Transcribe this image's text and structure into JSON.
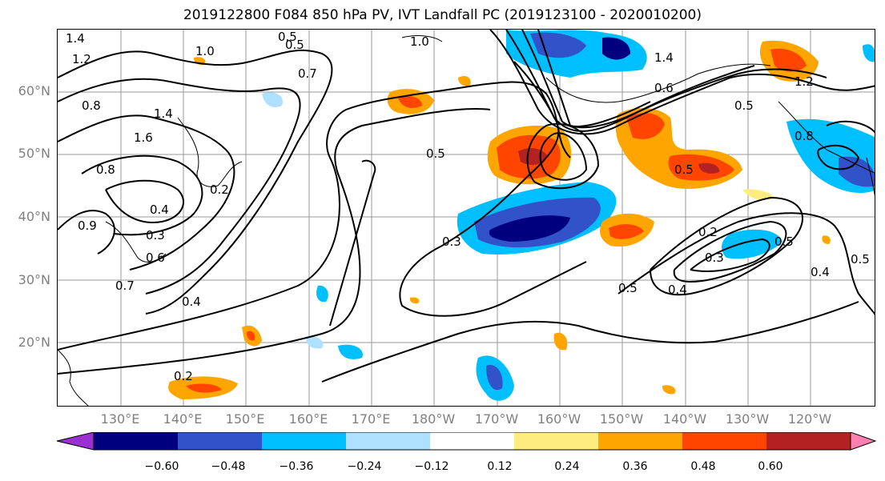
{
  "title": "2019122800 F084 850 hPa PV, IVT Landfall PC (2019123100 - 2020010200)",
  "lat_labels": [
    "60°N",
    "50°N",
    "40°N",
    "30°N",
    "20°N"
  ],
  "lon_labels": [
    "130°E",
    "140°E",
    "150°E",
    "160°E",
    "170°E",
    "180°W",
    "170°W",
    "160°W",
    "150°W",
    "140°W",
    "130°W",
    "120°W"
  ],
  "contour_labels": [
    "1.4",
    "1.2",
    "0.8",
    "1.0",
    "0.5",
    "0.7",
    "0.5",
    "1.0",
    "1.4",
    "1.2",
    "0.6",
    "0.5",
    "1.6",
    "0.8",
    "1.4",
    "0.4",
    "0.2",
    "0.9",
    "0.3",
    "0.6",
    "0.7",
    "0.4",
    "0.2",
    "0.3",
    "0.5",
    "0.3",
    "0.2",
    "0.5",
    "0.4",
    "0.4",
    "0.5",
    "0.8",
    "0.5",
    "0.5"
  ],
  "colorbar": {
    "ticks": [
      "−0.60",
      "−0.48",
      "−0.36",
      "−0.24",
      "−0.12",
      "0.12",
      "0.24",
      "0.36",
      "0.48",
      "0.60"
    ],
    "colors": [
      "#9a2fd2",
      "#00007f",
      "#3152c8",
      "#00bfff",
      "#b0e0ff",
      "#ffffff",
      "#ffec80",
      "#ffa500",
      "#ff4500",
      "#b22222",
      "#ff80b0"
    ]
  },
  "colors": {
    "neg_strong": "#00007f",
    "neg_mid": "#3152c8",
    "neg_light": "#00bfff",
    "neg_faint": "#b0e0ff",
    "pos_faint": "#ffec80",
    "pos_light": "#ffa500",
    "pos_mid": "#ff4500",
    "pos_strong": "#b22222"
  }
}
